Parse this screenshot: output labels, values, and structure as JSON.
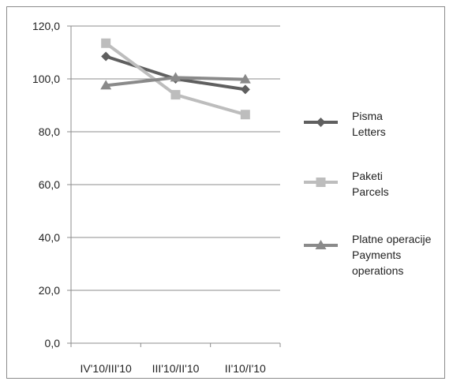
{
  "chart_data": {
    "type": "line",
    "title": "",
    "xlabel": "",
    "ylabel": "",
    "categories": [
      "IV'10/III'10",
      "III'10/II'10",
      "II'10/I'10"
    ],
    "ylim": [
      0,
      120
    ],
    "yticks": [
      0,
      20,
      40,
      60,
      80,
      100,
      120
    ],
    "ytick_labels": [
      "0,0",
      "20,0",
      "40,0",
      "60,0",
      "80,0",
      "100,0",
      "120,0"
    ],
    "grid": true,
    "legend_position": "right",
    "series": [
      {
        "name_line1": "Pisma",
        "name_line2": "Letters",
        "name_line3": "",
        "marker": "diamond",
        "color": "#5f5f5f",
        "values": [
          108.5,
          100.0,
          96.0
        ]
      },
      {
        "name_line1": "Paketi",
        "name_line2": "Parcels",
        "name_line3": "",
        "marker": "square",
        "color": "#bdbdbd",
        "values": [
          113.5,
          94.0,
          86.5
        ]
      },
      {
        "name_line1": "Platne operacije",
        "name_line2": "Payments",
        "name_line3": "operations",
        "marker": "triangle",
        "color": "#8a8a8a",
        "values": [
          97.5,
          100.5,
          99.8
        ]
      }
    ]
  }
}
